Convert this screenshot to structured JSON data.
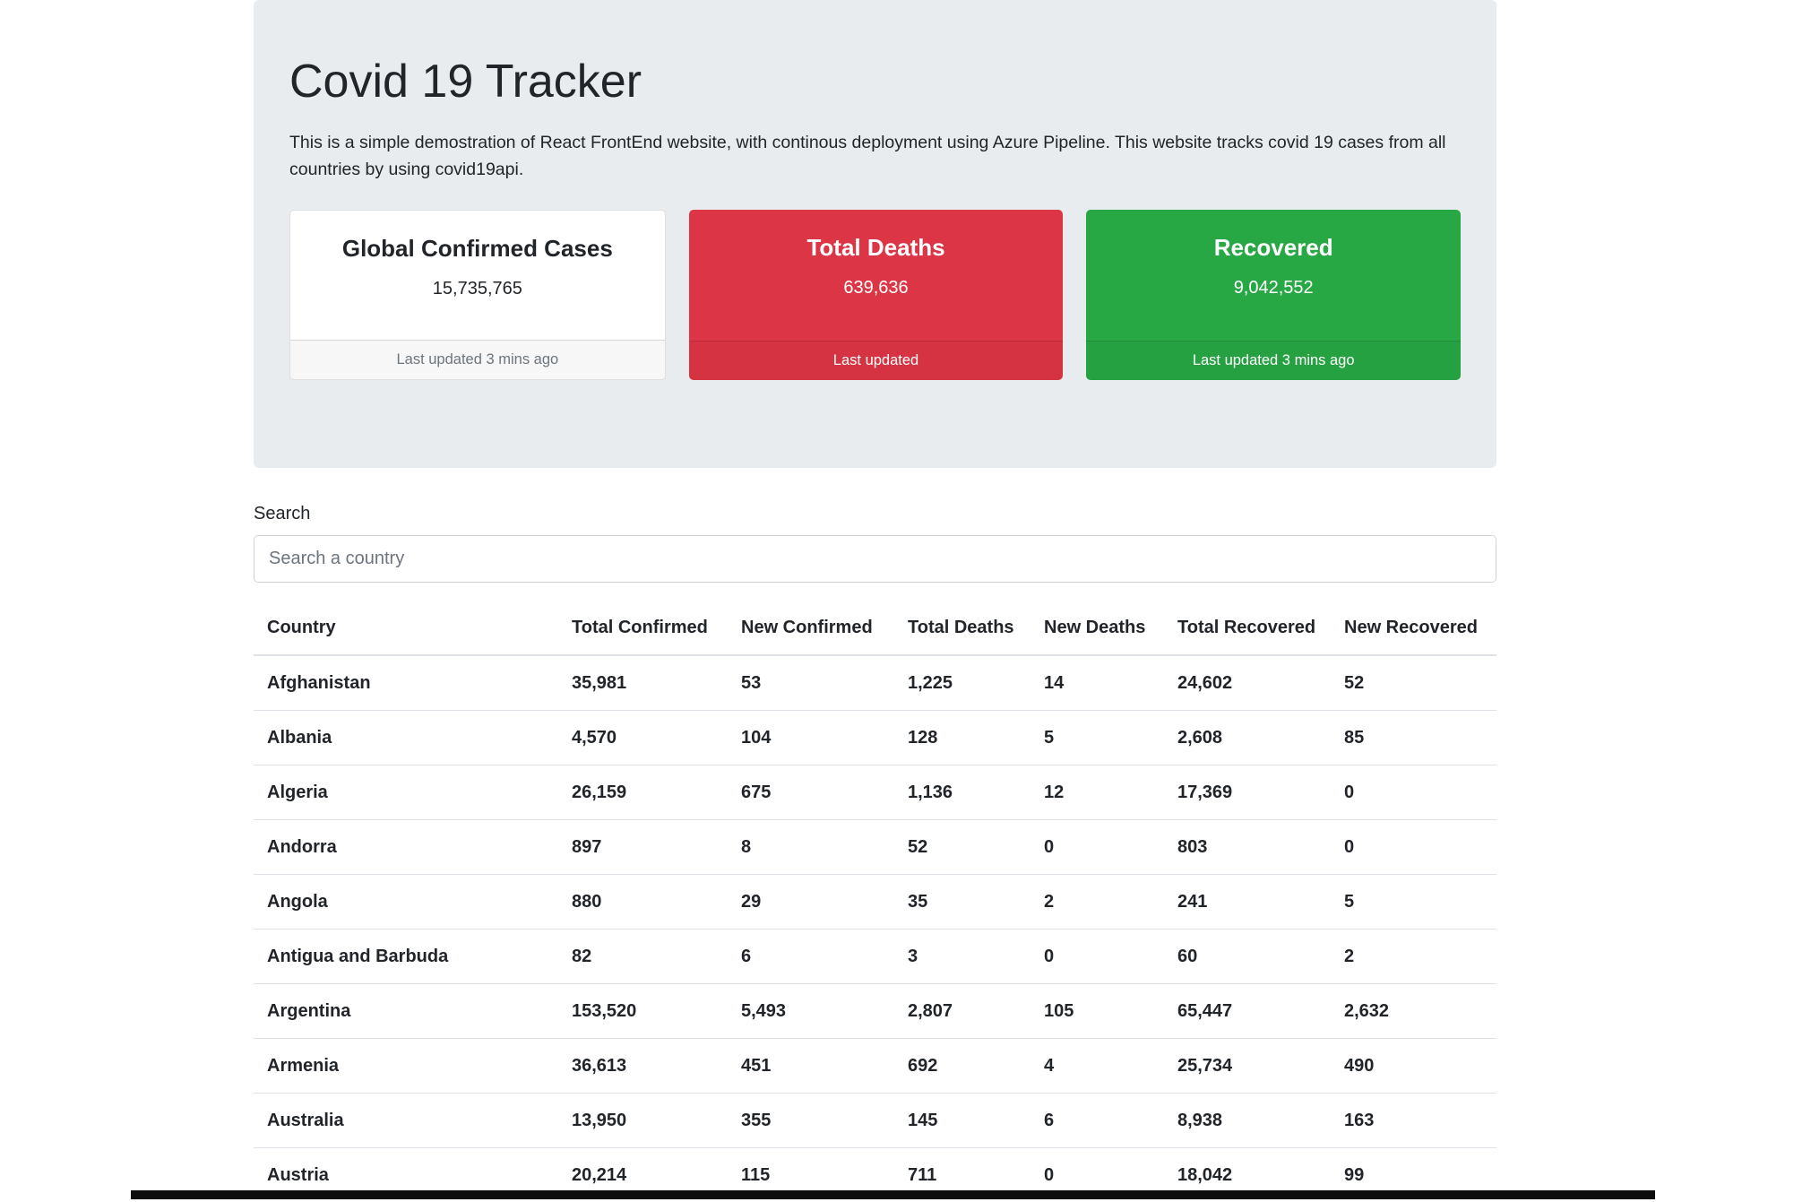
{
  "page": {
    "title": "Covid 19 Tracker",
    "description": "This is a simple demostration of React FrontEnd website, with continous deployment using Azure Pipeline. This website tracks covid 19 cases from all countries by using covid19api."
  },
  "colors": {
    "jumbotron_bg": "#e9ecef",
    "danger": "#dc3545",
    "success": "#28a745",
    "table_border": "#dee2e6",
    "muted_text": "#6c757d"
  },
  "cards": [
    {
      "title": "Global Confirmed Cases",
      "value": "15,735,765",
      "footer": "Last updated 3 mins ago",
      "style": "light"
    },
    {
      "title": "Total Deaths",
      "value": "639,636",
      "footer": "Last updated",
      "style": "danger"
    },
    {
      "title": "Recovered",
      "value": "9,042,552",
      "footer": "Last updated 3 mins ago",
      "style": "success"
    }
  ],
  "search": {
    "label": "Search",
    "placeholder": "Search a country",
    "value": ""
  },
  "table": {
    "headers": [
      "Country",
      "Total Confirmed",
      "New Confirmed",
      "Total Deaths",
      "New Deaths",
      "Total Recovered",
      "New Recovered"
    ],
    "rows": [
      [
        "Afghanistan",
        "35,981",
        "53",
        "1,225",
        "14",
        "24,602",
        "52"
      ],
      [
        "Albania",
        "4,570",
        "104",
        "128",
        "5",
        "2,608",
        "85"
      ],
      [
        "Algeria",
        "26,159",
        "675",
        "1,136",
        "12",
        "17,369",
        "0"
      ],
      [
        "Andorra",
        "897",
        "8",
        "52",
        "0",
        "803",
        "0"
      ],
      [
        "Angola",
        "880",
        "29",
        "35",
        "2",
        "241",
        "5"
      ],
      [
        "Antigua and Barbuda",
        "82",
        "6",
        "3",
        "0",
        "60",
        "2"
      ],
      [
        "Argentina",
        "153,520",
        "5,493",
        "2,807",
        "105",
        "65,447",
        "2,632"
      ],
      [
        "Armenia",
        "36,613",
        "451",
        "692",
        "4",
        "25,734",
        "490"
      ],
      [
        "Australia",
        "13,950",
        "355",
        "145",
        "6",
        "8,938",
        "163"
      ],
      [
        "Austria",
        "20,214",
        "115",
        "711",
        "0",
        "18,042",
        "99"
      ]
    ]
  }
}
